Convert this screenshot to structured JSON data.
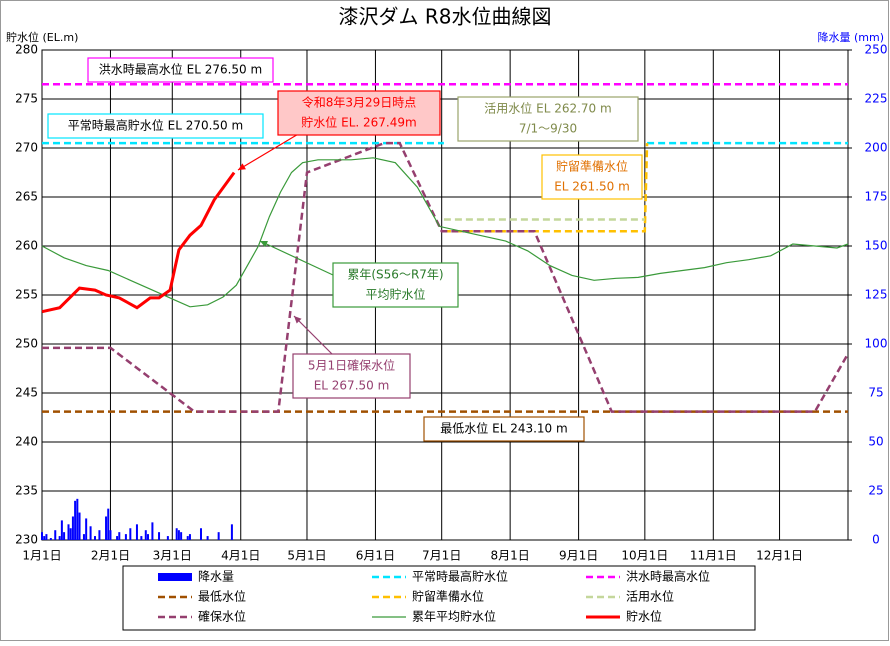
{
  "chart_data": {
    "type": "line",
    "title": "漆沢ダム R8水位曲線図",
    "y_label": "貯水位 (EL.m)",
    "y2_label": "降水量 (mm)",
    "xlim": [
      0,
      365
    ],
    "ylim": [
      230,
      280
    ],
    "y2lim": [
      0,
      250
    ],
    "grid": true,
    "xticks": [
      {
        "value": 0,
        "label": "1月1日"
      },
      {
        "value": 31,
        "label": "2月1日"
      },
      {
        "value": 59,
        "label": "3月1日"
      },
      {
        "value": 90,
        "label": "4月1日"
      },
      {
        "value": 120,
        "label": "5月1日"
      },
      {
        "value": 151,
        "label": "6月1日"
      },
      {
        "value": 181,
        "label": "7月1日"
      },
      {
        "value": 212,
        "label": "8月1日"
      },
      {
        "value": 243,
        "label": "9月1日"
      },
      {
        "value": 273,
        "label": "10月1日"
      },
      {
        "value": 304,
        "label": "11月1日"
      },
      {
        "value": 334,
        "label": "12月1日"
      }
    ],
    "yticks": [
      230,
      235,
      240,
      245,
      250,
      255,
      260,
      265,
      270,
      275,
      280
    ],
    "y2ticks": [
      0,
      25,
      50,
      75,
      100,
      125,
      150,
      175,
      200,
      225,
      250
    ],
    "series": [
      {
        "name": "降水量",
        "color": "#0000ff",
        "axis": "y2",
        "mark": "bar",
        "x": [
          0,
          1,
          2,
          4,
          6,
          8,
          9,
          10,
          12,
          13,
          14,
          15,
          16,
          17,
          19,
          20,
          22,
          24,
          26,
          29,
          30,
          31,
          34,
          35,
          38,
          40,
          43,
          45,
          47,
          48,
          50,
          53,
          57,
          61,
          62,
          63,
          66,
          67,
          72,
          75,
          80,
          86
        ],
        "values": [
          4,
          2,
          3,
          1,
          5,
          2,
          10,
          4,
          8,
          6,
          12,
          20,
          21,
          14,
          3,
          11,
          7,
          2,
          5,
          12,
          16,
          5,
          2,
          4,
          3,
          6,
          8,
          2,
          5,
          3,
          9,
          4,
          2,
          6,
          5,
          4,
          2,
          3,
          6,
          2,
          4,
          8
        ]
      },
      {
        "name": "平常時最高貯水位",
        "color": "#00e5ff",
        "dash": true,
        "width": 2.5,
        "x": [
          0,
          182,
          228,
          274,
          365
        ],
        "values": [
          270.5,
          270.5,
          null,
          270.5,
          270.5
        ]
      },
      {
        "name": "洪水時最高水位",
        "color": "#ff00ff",
        "dash": true,
        "width": 2.5,
        "x": [
          0,
          365
        ],
        "values": [
          276.5,
          276.5
        ]
      },
      {
        "name": "最低水位",
        "color": "#a05000",
        "dash": true,
        "width": 2.5,
        "x": [
          0,
          365
        ],
        "values": [
          243.1,
          243.1
        ]
      },
      {
        "name": "貯留準備水位",
        "color": "#ffc000",
        "dash": true,
        "width": 2.5,
        "x": [
          182,
          273,
          274
        ],
        "values": [
          261.5,
          261.5,
          270.5
        ]
      },
      {
        "name": "活用水位",
        "color": "#c4d79b",
        "dash": true,
        "width": 2.5,
        "x": [
          182,
          273
        ],
        "values": [
          262.7,
          262.7
        ]
      },
      {
        "name": "確保水位",
        "color": "#953f6f",
        "dash": true,
        "width": 2.5,
        "x": [
          0,
          31,
          69,
          107,
          120,
          155,
          162,
          181,
          223,
          258,
          350,
          365
        ],
        "values": [
          249.6,
          249.6,
          243.1,
          243.1,
          267.5,
          270.5,
          270.5,
          261.5,
          261.5,
          243.1,
          243.1,
          249.0
        ]
      },
      {
        "name": "累年平均貯水位",
        "color": "#3a9a3a",
        "width": 1.2,
        "x": [
          0,
          10,
          20,
          30,
          40,
          50,
          60,
          67,
          75,
          82,
          88,
          93,
          98,
          103,
          108,
          113,
          118,
          125,
          140,
          150,
          160,
          170,
          180,
          190,
          200,
          210,
          220,
          230,
          240,
          250,
          260,
          270,
          280,
          290,
          300,
          310,
          320,
          330,
          340,
          350,
          360,
          365
        ],
        "values": [
          260,
          258.8,
          258,
          257.5,
          256.5,
          255.5,
          254.5,
          253.8,
          254,
          254.8,
          256,
          258,
          260,
          263,
          265.5,
          267.5,
          268.5,
          268.8,
          268.8,
          269,
          268.5,
          266,
          262,
          261.5,
          261,
          260.5,
          259.5,
          258,
          257,
          256.5,
          256.7,
          256.8,
          257.2,
          257.5,
          257.8,
          258.3,
          258.6,
          259,
          260.2,
          260,
          259.8,
          260.2
        ]
      },
      {
        "name": "貯水位",
        "color": "#ff0000",
        "width": 3,
        "x": [
          0,
          8,
          17,
          24,
          29,
          35,
          43,
          49,
          53,
          58,
          62,
          67,
          72,
          78,
          87
        ],
        "values": [
          253.3,
          253.7,
          255.7,
          255.5,
          255,
          254.7,
          253.7,
          254.7,
          254.7,
          255.5,
          259.6,
          261.1,
          262.1,
          264.7,
          267.49
        ]
      }
    ],
    "annotations": [
      [
        "洪水時最高水位  EL 276.50 m"
      ],
      [
        "平常時最高貯水位  EL 270.50 m"
      ],
      [
        "令和8年3月29日時点",
        "貯水位 EL. 267.49m"
      ],
      [
        "活用水位 EL 262.70 m",
        "7/1～9/30"
      ],
      [
        "貯留準備水位",
        "EL 261.50 m"
      ],
      [
        "累年(S56～R7年)",
        "平均貯水位"
      ],
      [
        "5月1日確保水位",
        "EL 267.50 m"
      ],
      [
        "最低水位  EL 243.10 m"
      ]
    ]
  }
}
